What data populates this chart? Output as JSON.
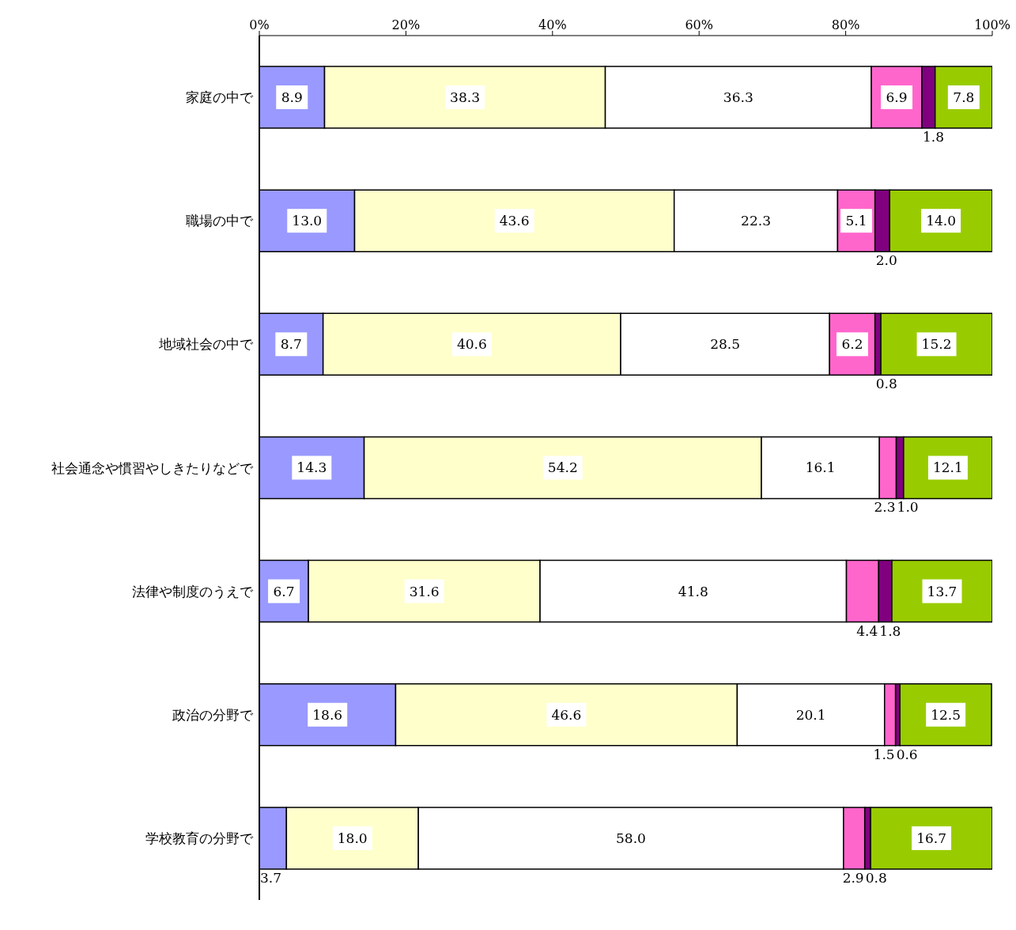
{
  "chart_data": {
    "type": "bar",
    "orientation": "horizontal",
    "stacked": true,
    "categories": [
      "家庭の中で",
      "職場の中で",
      "地域社会の中で",
      "社会通念や慣習やしきたりなどで",
      "法律や制度のうえで",
      "政治の分野で",
      "学校教育の分野で"
    ],
    "series": [
      {
        "color": "#9999ff",
        "values": [
          8.9,
          13.0,
          8.7,
          14.3,
          6.7,
          18.6,
          3.7
        ],
        "value_labels": [
          "8.9",
          "13.0",
          "8.7",
          "14.3",
          "6.7",
          "18.6",
          "3.7"
        ]
      },
      {
        "color": "#ffffcc",
        "values": [
          38.3,
          43.6,
          40.6,
          54.2,
          31.6,
          46.6,
          18.0
        ],
        "value_labels": [
          "38.3",
          "43.6",
          "40.6",
          "54.2",
          "31.6",
          "46.6",
          "18.0"
        ]
      },
      {
        "color": "#ffffff",
        "values": [
          36.3,
          22.3,
          28.5,
          16.1,
          41.8,
          20.1,
          58.0
        ],
        "value_labels": [
          "36.3",
          "22.3",
          "28.5",
          "16.1",
          "41.8",
          "20.1",
          "58.0"
        ]
      },
      {
        "color": "#ff66cc",
        "values": [
          6.9,
          5.1,
          6.2,
          2.3,
          4.4,
          1.5,
          2.9
        ],
        "value_labels": [
          "6.9",
          "5.1",
          "6.2",
          "2.3",
          "4.4",
          "1.5",
          "2.9"
        ]
      },
      {
        "color": "#800080",
        "values": [
          1.8,
          2.0,
          0.8,
          1.0,
          1.8,
          0.6,
          0.8
        ],
        "value_labels": [
          "1.8",
          "2.0",
          "0.8",
          "1.0",
          "1.8",
          "0.6",
          "0.8"
        ]
      },
      {
        "color": "#99cc00",
        "values": [
          7.8,
          14.0,
          15.2,
          12.1,
          13.7,
          12.5,
          16.7
        ],
        "value_labels": [
          "7.8",
          "14.0",
          "15.2",
          "12.1",
          "13.7",
          "12.5",
          "16.7"
        ]
      }
    ],
    "xlim": [
      0,
      100
    ],
    "xticks": [
      {
        "value": 0,
        "label": "0%"
      },
      {
        "value": 20,
        "label": "20%"
      },
      {
        "value": 40,
        "label": "40%"
      },
      {
        "value": 60,
        "label": "60%"
      },
      {
        "value": 80,
        "label": "80%"
      },
      {
        "value": 100,
        "label": "100%"
      }
    ],
    "grid": false,
    "legend": false
  }
}
